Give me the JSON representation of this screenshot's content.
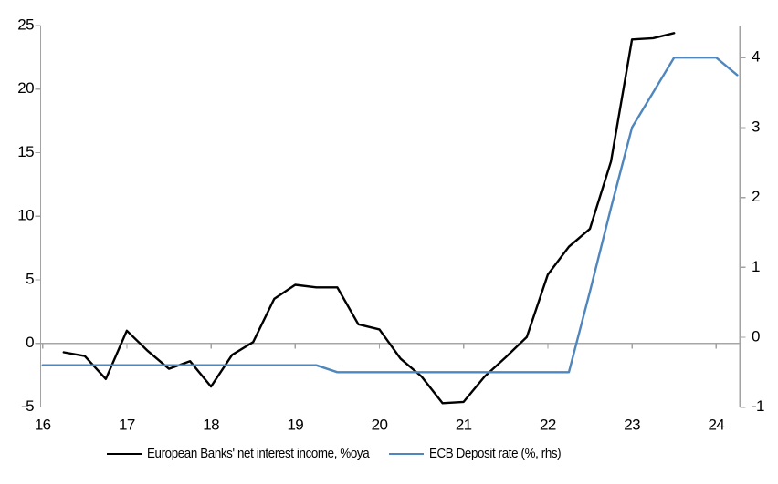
{
  "chart_data": {
    "type": "line",
    "title": "",
    "xlabel": "",
    "ylabel_left": "",
    "ylabel_right": "",
    "grid": "zero-line-only",
    "legend_position": "bottom",
    "x_axis": {
      "ticks": [
        16,
        17,
        18,
        19,
        20,
        21,
        22,
        23,
        24
      ],
      "range": [
        16,
        24.3
      ]
    },
    "left_y_axis": {
      "ticks": [
        -5,
        0,
        5,
        10,
        15,
        20,
        25
      ],
      "range": [
        -5,
        25
      ]
    },
    "right_y_axis": {
      "ticks": [
        -1,
        0,
        1,
        2,
        3,
        4
      ],
      "range": [
        -1,
        4.46
      ]
    },
    "series": [
      {
        "name": "European Banks' net interest income, %oya",
        "axis": "left",
        "color": "#000000",
        "x": [
          16.25,
          16.5,
          16.75,
          17.0,
          17.25,
          17.5,
          17.75,
          18.0,
          18.25,
          18.5,
          18.75,
          19.0,
          19.25,
          19.5,
          19.75,
          20.0,
          20.25,
          20.5,
          20.75,
          21.0,
          21.25,
          21.5,
          21.75,
          22.0,
          22.25,
          22.5,
          22.75,
          23.0,
          23.25,
          23.5
        ],
        "values": [
          -0.7,
          -1.0,
          -2.8,
          1.0,
          -0.6,
          -2.0,
          -1.4,
          -3.4,
          -0.9,
          0.1,
          3.5,
          4.6,
          4.4,
          4.4,
          1.5,
          1.1,
          -1.2,
          -2.6,
          -4.7,
          -4.6,
          -2.6,
          -1.1,
          0.5,
          5.4,
          7.6,
          9.0,
          14.3,
          23.9,
          24.0,
          24.4
        ]
      },
      {
        "name": "ECB Deposit rate (%, rhs)",
        "axis": "right",
        "color": "#4e86bd",
        "x": [
          16.0,
          16.25,
          16.5,
          16.75,
          17.0,
          17.25,
          17.5,
          17.75,
          18.0,
          18.25,
          18.5,
          18.75,
          19.0,
          19.25,
          19.5,
          19.75,
          20.0,
          20.25,
          20.5,
          20.75,
          21.0,
          21.25,
          21.5,
          21.75,
          22.0,
          22.25,
          22.5,
          22.75,
          23.0,
          23.25,
          23.5,
          23.75,
          24.0,
          24.25
        ],
        "values": [
          -0.4,
          -0.4,
          -0.4,
          -0.4,
          -0.4,
          -0.4,
          -0.4,
          -0.4,
          -0.4,
          -0.4,
          -0.4,
          -0.4,
          -0.4,
          -0.4,
          -0.5,
          -0.5,
          -0.5,
          -0.5,
          -0.5,
          -0.5,
          -0.5,
          -0.5,
          -0.5,
          -0.5,
          -0.5,
          -0.5,
          0.65,
          1.85,
          3.0,
          3.5,
          4.0,
          4.0,
          4.0,
          3.75
        ]
      }
    ]
  },
  "colors": {
    "axis_line": "#a2a2a2",
    "zero_line": "#a6a6a6",
    "background": "#ffffff",
    "label_text": "#000000"
  }
}
